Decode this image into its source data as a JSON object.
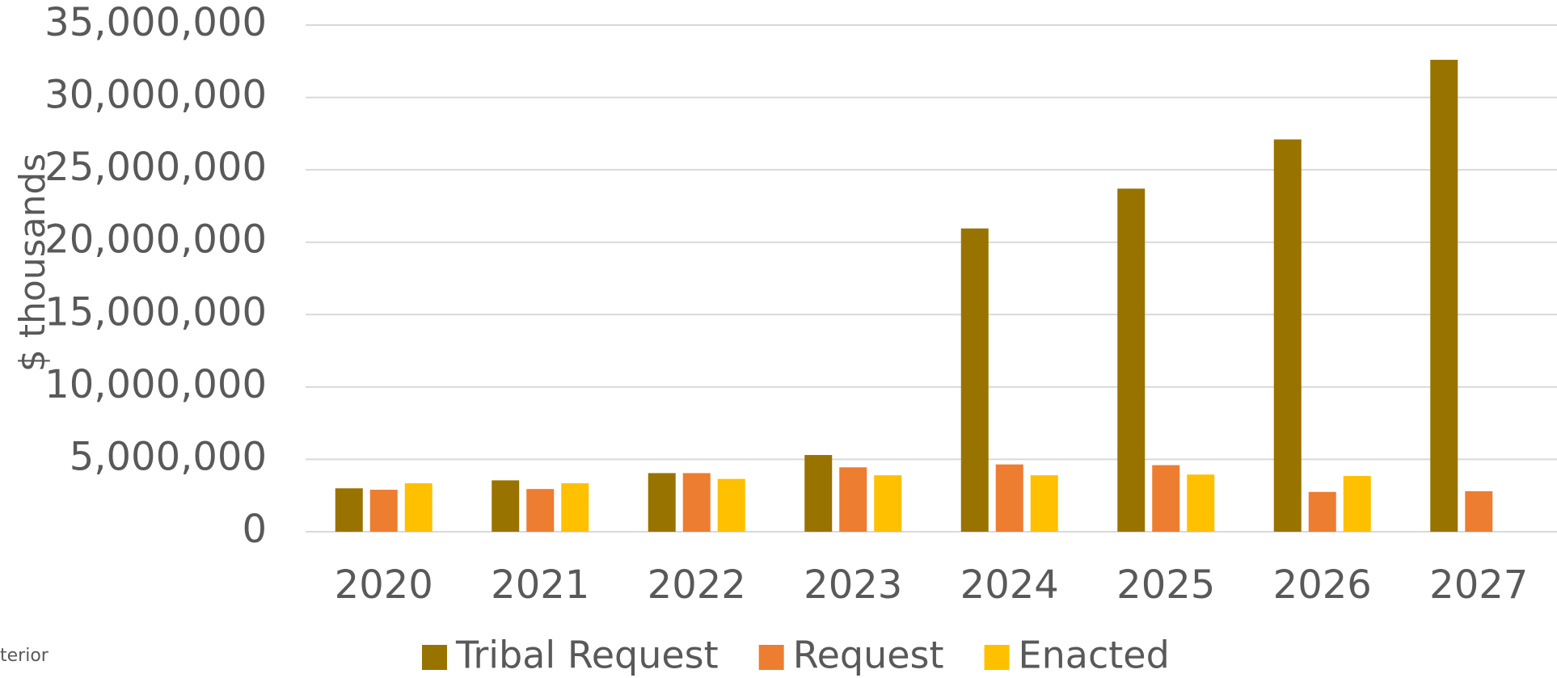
{
  "chart_data": {
    "type": "bar",
    "ylabel": "$ thousands",
    "categories": [
      "2020",
      "2021",
      "2022",
      "2023",
      "2024",
      "2025",
      "2026",
      "2027"
    ],
    "series": [
      {
        "name": "Tribal Request",
        "color": "#997300",
        "values": [
          3000000,
          3550000,
          4050000,
          5300000,
          20950000,
          23700000,
          27100000,
          32600000
        ]
      },
      {
        "name": "Request",
        "color": "#ed7d31",
        "values": [
          2900000,
          2950000,
          4050000,
          4450000,
          4650000,
          4600000,
          2750000,
          2800000
        ]
      },
      {
        "name": "Enacted",
        "color": "#ffc000",
        "values": [
          3350000,
          3350000,
          3650000,
          3900000,
          3900000,
          3950000,
          3850000,
          null
        ]
      }
    ],
    "ylim": [
      0,
      35000000
    ],
    "yticks": [
      0,
      {
        "value": 5000000,
        "label": "5,000,000"
      },
      {
        "value": 10000000,
        "label": "10,000,000"
      },
      {
        "value": 15000000,
        "label": "15,000,000"
      },
      {
        "value": 20000000,
        "label": "20,000,000"
      },
      {
        "value": 25000000,
        "label": "25,000,000"
      },
      {
        "value": 30000000,
        "label": "30,000,000"
      },
      {
        "value": 35000000,
        "label": "35,000,000"
      }
    ],
    "grid": true,
    "legend": "bottom",
    "source": "terior"
  }
}
